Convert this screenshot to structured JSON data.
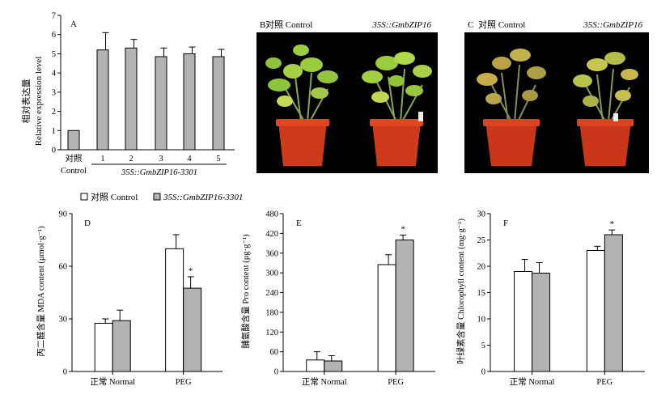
{
  "chart_data": [
    {
      "panel": "A",
      "type": "bar",
      "ylabel_cn": "相对表达量",
      "ylabel_en": "Relative expression level",
      "ylim": [
        0,
        7
      ],
      "yticks": [
        "0",
        "1",
        "2",
        "3",
        "4",
        "5",
        "6",
        "7"
      ],
      "control_label_cn": "对照",
      "control_label_en": "Control",
      "group_label": "35S::GmbZIP16-3301",
      "categories": [
        "对照 Control",
        "1",
        "2",
        "3",
        "4",
        "5"
      ],
      "values": [
        1.0,
        5.2,
        5.3,
        4.85,
        5.0,
        4.85
      ],
      "errors": [
        0,
        0.9,
        0.45,
        0.45,
        0.35,
        0.38
      ],
      "colors": [
        "#b3b3b3",
        "#b3b3b3",
        "#b3b3b3",
        "#b3b3b3",
        "#b3b3b3",
        "#b3b3b3"
      ]
    },
    {
      "panel": "D",
      "type": "bar",
      "ylabel": "丙二醛含量 MDA content (μmol·g⁻¹)",
      "ylim": [
        0,
        90
      ],
      "yticks": [
        "0",
        "30",
        "60",
        "90"
      ],
      "categories": [
        "正常 Normal",
        "PEG"
      ],
      "series": [
        {
          "name": "对照 Control",
          "values": [
            27.5,
            70
          ],
          "errors": [
            2.5,
            8
          ]
        },
        {
          "name": "35S::GmbZIP16-3301",
          "values": [
            29,
            47.5
          ],
          "errors": [
            6,
            6.5
          ]
        }
      ],
      "significance": [
        {
          "series": 1,
          "category": 1,
          "mark": "*"
        }
      ]
    },
    {
      "panel": "E",
      "type": "bar",
      "ylabel": "脯氨酸含量 Pro content (μg·g⁻¹)",
      "ylim": [
        0,
        480
      ],
      "yticks": [
        "0",
        "60",
        "120",
        "180",
        "240",
        "300",
        "360",
        "420",
        "480"
      ],
      "categories": [
        "正常 Normal",
        "PEG"
      ],
      "series": [
        {
          "name": "对照 Control",
          "values": [
            35,
            325
          ],
          "errors": [
            25,
            30
          ]
        },
        {
          "name": "35S::GmbZIP16-3301",
          "values": [
            32,
            400
          ],
          "errors": [
            16,
            15
          ]
        }
      ],
      "significance": [
        {
          "series": 1,
          "category": 1,
          "mark": "*"
        }
      ]
    },
    {
      "panel": "F",
      "type": "bar",
      "ylabel": "叶绿素含量 Chlorophyll content (mg·g⁻¹)",
      "ylim": [
        0,
        30
      ],
      "yticks": [
        "0",
        "5",
        "10",
        "15",
        "20",
        "25",
        "30"
      ],
      "categories": [
        "正常 Normal",
        "PEG"
      ],
      "series": [
        {
          "name": "对照 Control",
          "values": [
            19,
            23
          ],
          "errors": [
            2.3,
            0.8
          ]
        },
        {
          "name": "35S::GmbZIP16-3301",
          "values": [
            18.7,
            26
          ],
          "errors": [
            2,
            0.9
          ]
        }
      ],
      "significance": [
        {
          "series": 1,
          "category": 1,
          "mark": "*"
        }
      ]
    }
  ],
  "legend": [
    {
      "label": "对照 Control",
      "color": "#ffffff"
    },
    {
      "label": "35S::GmbZIP16-3301",
      "color": "#b3b3b3"
    }
  ],
  "photos": [
    {
      "panel": "B",
      "label_control": "对照 Control",
      "label_transgenic": "35S::GmbZIP16"
    },
    {
      "panel": "C",
      "label_control": "对照 Control",
      "label_transgenic": "35S::GmbZIP16"
    }
  ],
  "colors": {
    "bar_gray": "#b3b3b3",
    "bar_white": "#ffffff",
    "photo_bg": "#000000",
    "pot": "#d23a1c",
    "leaf_green": "#9ac83a",
    "leaf_yellow": "#c7b04a"
  }
}
